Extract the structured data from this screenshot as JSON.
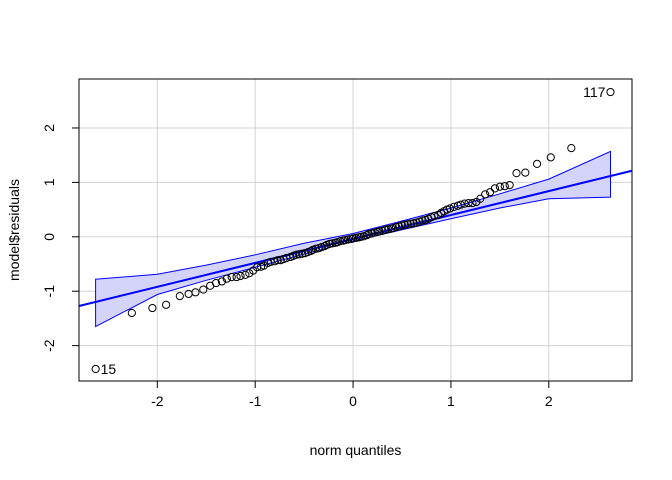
{
  "chart_data": {
    "type": "scatter",
    "title": "",
    "xlabel": "norm quantiles",
    "ylabel": "model$residuals",
    "xlim": [
      -2.8,
      2.85
    ],
    "ylim": [
      -2.65,
      2.9
    ],
    "xticks": [
      -2,
      -1,
      0,
      1,
      2
    ],
    "yticks": [
      -2,
      -1,
      0,
      1,
      2
    ],
    "grid": true,
    "colors": {
      "points": "#000000",
      "line": "#0000ff",
      "band_fill": "#d4d4fb",
      "grid": "#d3d3d3",
      "frame": "#000000"
    },
    "reference_line": {
      "intercept": -0.04,
      "slope": 0.44
    },
    "envelope": {
      "x": [
        -2.63,
        -2.0,
        -1.5,
        -1.0,
        -0.5,
        0.0,
        0.5,
        1.0,
        1.5,
        2.0,
        2.63
      ],
      "lower": [
        -1.65,
        -1.06,
        -0.8,
        -0.56,
        -0.32,
        -0.08,
        0.13,
        0.33,
        0.53,
        0.7,
        0.73
      ],
      "upper": [
        -0.78,
        -0.69,
        -0.52,
        -0.33,
        -0.12,
        0.06,
        0.29,
        0.53,
        0.79,
        1.06,
        1.57
      ]
    },
    "points": {
      "x": [
        -2.63,
        -2.26,
        -2.05,
        -1.91,
        -1.77,
        -1.68,
        -1.61,
        -1.53,
        -1.46,
        -1.4,
        -1.34,
        -1.29,
        -1.24,
        -1.19,
        -1.15,
        -1.1,
        -1.06,
        -1.02,
        -0.98,
        -0.94,
        -0.91,
        -0.87,
        -0.84,
        -0.8,
        -0.77,
        -0.74,
        -0.71,
        -0.68,
        -0.64,
        -0.61,
        -0.58,
        -0.55,
        -0.52,
        -0.49,
        -0.46,
        -0.43,
        -0.41,
        -0.38,
        -0.35,
        -0.32,
        -0.29,
        -0.27,
        -0.24,
        -0.21,
        -0.18,
        -0.16,
        -0.13,
        -0.1,
        -0.08,
        -0.05,
        -0.02,
        0.0,
        0.03,
        0.06,
        0.08,
        0.11,
        0.14,
        0.16,
        0.19,
        0.22,
        0.25,
        0.27,
        0.3,
        0.33,
        0.36,
        0.39,
        0.41,
        0.44,
        0.47,
        0.5,
        0.53,
        0.56,
        0.59,
        0.62,
        0.65,
        0.68,
        0.71,
        0.74,
        0.77,
        0.8,
        0.83,
        0.87,
        0.9,
        0.93,
        0.96,
        0.99,
        1.03,
        1.07,
        1.1,
        1.14,
        1.18,
        1.22,
        1.26,
        1.3,
        1.35,
        1.4,
        1.45,
        1.5,
        1.55,
        1.6,
        1.67,
        1.76,
        1.88,
        2.02,
        2.23,
        2.63
      ],
      "y": [
        -2.43,
        -1.4,
        -1.31,
        -1.25,
        -1.09,
        -1.05,
        -1.02,
        -0.97,
        -0.9,
        -0.85,
        -0.82,
        -0.77,
        -0.74,
        -0.74,
        -0.72,
        -0.7,
        -0.67,
        -0.62,
        -0.56,
        -0.55,
        -0.53,
        -0.48,
        -0.46,
        -0.45,
        -0.43,
        -0.43,
        -0.41,
        -0.39,
        -0.37,
        -0.35,
        -0.33,
        -0.32,
        -0.31,
        -0.3,
        -0.28,
        -0.26,
        -0.24,
        -0.22,
        -0.21,
        -0.19,
        -0.17,
        -0.15,
        -0.13,
        -0.12,
        -0.11,
        -0.1,
        -0.08,
        -0.07,
        -0.06,
        -0.05,
        -0.04,
        -0.03,
        -0.02,
        -0.01,
        0.0,
        0.01,
        0.03,
        0.05,
        0.06,
        0.08,
        0.09,
        0.1,
        0.11,
        0.13,
        0.14,
        0.15,
        0.16,
        0.18,
        0.19,
        0.21,
        0.22,
        0.23,
        0.24,
        0.25,
        0.26,
        0.28,
        0.3,
        0.31,
        0.33,
        0.36,
        0.38,
        0.4,
        0.44,
        0.47,
        0.5,
        0.52,
        0.55,
        0.57,
        0.59,
        0.61,
        0.62,
        0.62,
        0.64,
        0.7,
        0.78,
        0.82,
        0.89,
        0.92,
        0.93,
        0.95,
        1.17,
        1.18,
        1.34,
        1.46,
        1.63,
        2.66
      ]
    },
    "point_labels": [
      {
        "text": "117",
        "x": 2.63,
        "y": 2.66,
        "side": "left"
      },
      {
        "text": "15",
        "x": -2.63,
        "y": -2.43,
        "side": "right"
      }
    ]
  }
}
